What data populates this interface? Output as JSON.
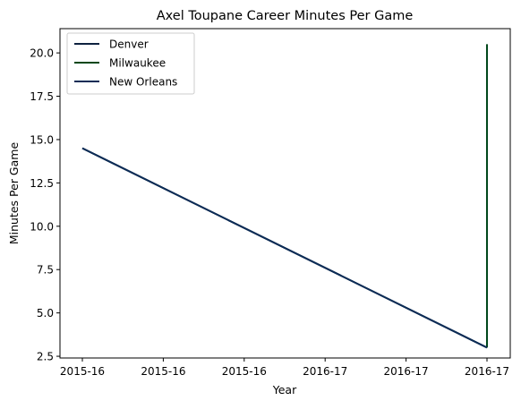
{
  "chart_data": {
    "type": "line",
    "title": "Axel Toupane Career Minutes Per Game",
    "xlabel": "Year",
    "ylabel": "Minutes Per Game",
    "x_tick_labels": [
      "2015-16",
      "2015-16",
      "2015-16",
      "2016-17",
      "2016-17",
      "2016-17"
    ],
    "x_range": [
      0,
      1
    ],
    "y_ticks": [
      2.5,
      5.0,
      7.5,
      10.0,
      12.5,
      15.0,
      17.5,
      20.0
    ],
    "y_tick_labels": [
      "2.5",
      "5.0",
      "7.5",
      "10.0",
      "12.5",
      "15.0",
      "17.5",
      "20.0"
    ],
    "ylim": [
      2.4,
      21.4
    ],
    "grid": false,
    "legend_position": "upper left",
    "series": [
      {
        "name": "Denver",
        "color": "#0E2240",
        "points": [
          {
            "x": 0,
            "y": 14.5
          },
          {
            "x": 1,
            "y": 3.0
          }
        ]
      },
      {
        "name": "Milwaukee",
        "color": "#00471B",
        "points": [
          {
            "x": 1,
            "y": 3.0
          },
          {
            "x": 1,
            "y": 20.5
          }
        ]
      },
      {
        "name": "New Orleans",
        "color": "#0C2C56",
        "points": [
          {
            "x": 0,
            "y": 14.5
          },
          {
            "x": 1,
            "y": 3.0
          }
        ]
      }
    ]
  }
}
